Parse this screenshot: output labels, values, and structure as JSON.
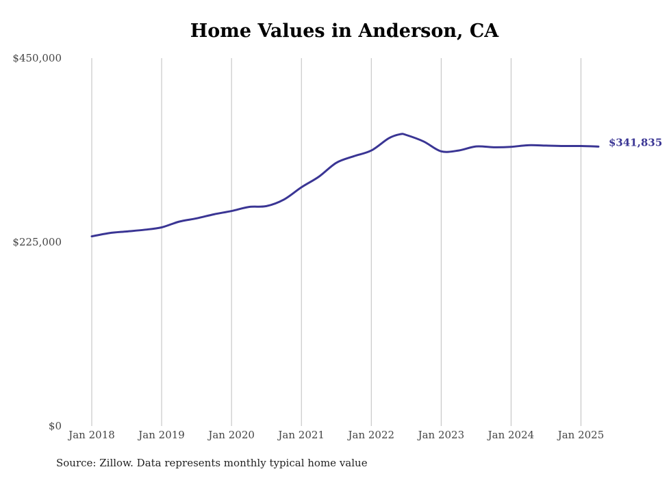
{
  "chart_data": {
    "type": "line",
    "title": "Home Values in Anderson, CA",
    "xlabel": "",
    "ylabel": "",
    "ylim": [
      0,
      450000
    ],
    "xlim": [
      "2018-01",
      "2025-04"
    ],
    "y_ticks": [
      {
        "value": 0,
        "label": "$0"
      },
      {
        "value": 225000,
        "label": "$225,000"
      },
      {
        "value": 450000,
        "label": "$450,000"
      }
    ],
    "x_ticks": [
      {
        "value": "2018-01",
        "label": "Jan 2018"
      },
      {
        "value": "2019-01",
        "label": "Jan 2019"
      },
      {
        "value": "2020-01",
        "label": "Jan 2020"
      },
      {
        "value": "2021-01",
        "label": "Jan 2021"
      },
      {
        "value": "2022-01",
        "label": "Jan 2022"
      },
      {
        "value": "2023-01",
        "label": "Jan 2023"
      },
      {
        "value": "2024-01",
        "label": "Jan 2024"
      },
      {
        "value": "2025-01",
        "label": "Jan 2025"
      }
    ],
    "grid": {
      "vertical": true,
      "horizontal": false
    },
    "series": [
      {
        "color": "#3a3594",
        "points": [
          {
            "x": "2018-01",
            "y": 232000
          },
          {
            "x": "2018-04",
            "y": 236000
          },
          {
            "x": "2018-07",
            "y": 238000
          },
          {
            "x": "2018-10",
            "y": 240000
          },
          {
            "x": "2019-01",
            "y": 243000
          },
          {
            "x": "2019-04",
            "y": 250000
          },
          {
            "x": "2019-07",
            "y": 254000
          },
          {
            "x": "2019-10",
            "y": 259000
          },
          {
            "x": "2020-01",
            "y": 263000
          },
          {
            "x": "2020-04",
            "y": 268000
          },
          {
            "x": "2020-07",
            "y": 269000
          },
          {
            "x": "2020-10",
            "y": 277000
          },
          {
            "x": "2021-01",
            "y": 292000
          },
          {
            "x": "2021-04",
            "y": 305000
          },
          {
            "x": "2021-07",
            "y": 322000
          },
          {
            "x": "2021-10",
            "y": 330000
          },
          {
            "x": "2022-01",
            "y": 337000
          },
          {
            "x": "2022-04",
            "y": 352000
          },
          {
            "x": "2022-06",
            "y": 357000
          },
          {
            "x": "2022-07",
            "y": 356000
          },
          {
            "x": "2022-10",
            "y": 348000
          },
          {
            "x": "2023-01",
            "y": 336000
          },
          {
            "x": "2023-04",
            "y": 337000
          },
          {
            "x": "2023-07",
            "y": 342000
          },
          {
            "x": "2023-10",
            "y": 341000
          },
          {
            "x": "2024-01",
            "y": 341500
          },
          {
            "x": "2024-04",
            "y": 343500
          },
          {
            "x": "2024-07",
            "y": 343000
          },
          {
            "x": "2024-10",
            "y": 342500
          },
          {
            "x": "2025-01",
            "y": 342500
          },
          {
            "x": "2025-04",
            "y": 341835
          }
        ],
        "end_label": "$341,835"
      }
    ],
    "source_note": "Source: Zillow. Data represents monthly typical home value"
  }
}
